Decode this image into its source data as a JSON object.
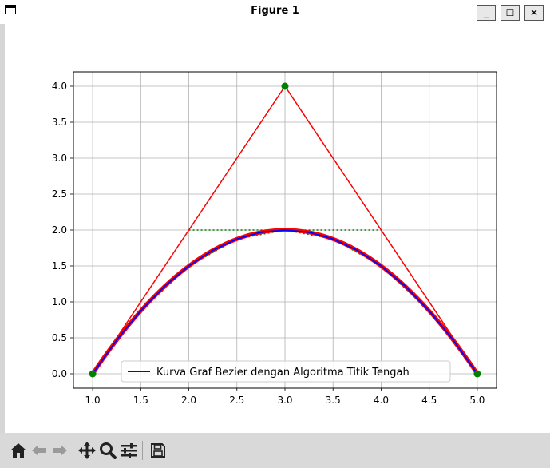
{
  "window": {
    "title": "Figure 1",
    "minimize_label": "_",
    "maximize_label": "☐",
    "close_label": "✕"
  },
  "toolbar": {
    "buttons": [
      {
        "name": "home-icon"
      },
      {
        "name": "back-arrow-icon"
      },
      {
        "name": "forward-arrow-icon"
      },
      {
        "name": "pan-icon"
      },
      {
        "name": "zoom-icon"
      },
      {
        "name": "configure-subplots-icon"
      },
      {
        "name": "save-icon"
      }
    ]
  },
  "colors": {
    "control_polygon": "#ff0000",
    "bezier_curve": "#0000ff",
    "helper_lines": "#008000",
    "control_points": "#008000",
    "midpoint_markers": "#ff0000",
    "grid": "#b0b0b0"
  },
  "chart_data": {
    "type": "line",
    "xlim": [
      0.8,
      5.2
    ],
    "ylim": [
      -0.2,
      4.2
    ],
    "grid": true,
    "xticks": [
      "1.0",
      "1.5",
      "2.0",
      "2.5",
      "3.0",
      "3.5",
      "4.0",
      "4.5",
      "5.0"
    ],
    "yticks": [
      "0.0",
      "0.5",
      "1.0",
      "1.5",
      "2.0",
      "2.5",
      "3.0",
      "3.5",
      "4.0"
    ],
    "control_points": {
      "x": [
        1,
        3,
        5
      ],
      "y": [
        0,
        4,
        0
      ]
    },
    "helper_line": {
      "x": [
        2,
        4
      ],
      "y": [
        2,
        2
      ]
    },
    "bezier_curve": {
      "x": [
        1.0,
        1.25,
        1.5,
        1.75,
        2.0,
        2.25,
        2.5,
        2.75,
        3.0,
        3.25,
        3.5,
        3.75,
        4.0,
        4.25,
        4.5,
        4.75,
        5.0
      ],
      "y": [
        0.0,
        0.4688,
        0.875,
        1.2188,
        1.5,
        1.7188,
        1.875,
        1.9688,
        2.0,
        1.9688,
        1.875,
        1.7188,
        1.5,
        1.2188,
        0.875,
        0.4688,
        0.0
      ]
    },
    "legend": {
      "entries": [
        "Kurva Graf Bezier dengan Algoritma Titik Tengah"
      ],
      "location": "lower center"
    }
  }
}
